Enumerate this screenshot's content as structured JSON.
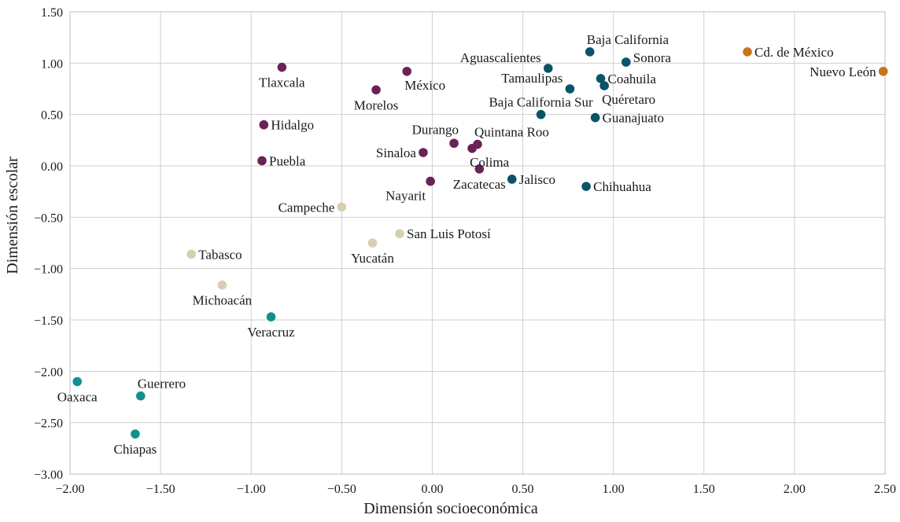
{
  "chart_data": {
    "type": "scatter",
    "xlabel": "Dimensión socioeconómica",
    "ylabel": "Dimensión escolar",
    "xlim": [
      -2.0,
      2.5
    ],
    "ylim": [
      -3.0,
      1.5
    ],
    "grid": true,
    "xticks": [
      {
        "v": -2.0,
        "label": "−2.00"
      },
      {
        "v": -1.5,
        "label": "−1.50"
      },
      {
        "v": -1.0,
        "label": "−1.00"
      },
      {
        "v": -0.5,
        "label": "−0.50"
      },
      {
        "v": 0.0,
        "label": "0.00"
      },
      {
        "v": 0.5,
        "label": "0.50"
      },
      {
        "v": 1.0,
        "label": "1.00"
      },
      {
        "v": 1.5,
        "label": "1.50"
      },
      {
        "v": 2.0,
        "label": "2.00"
      },
      {
        "v": 2.5,
        "label": "2.50"
      }
    ],
    "yticks": [
      {
        "v": 1.5,
        "label": "1.50"
      },
      {
        "v": 1.0,
        "label": "1.00"
      },
      {
        "v": 0.5,
        "label": "0.50"
      },
      {
        "v": 0.0,
        "label": "0.00"
      },
      {
        "v": -0.5,
        "label": "−0.50"
      },
      {
        "v": -1.0,
        "label": "−1.00"
      },
      {
        "v": -1.5,
        "label": "−1.50"
      },
      {
        "v": -2.0,
        "label": "−2.00"
      },
      {
        "v": -2.5,
        "label": "−2.50"
      },
      {
        "v": -3.0,
        "label": "−3.00"
      }
    ],
    "groups": [
      {
        "name": "high",
        "color": "#c8731e"
      },
      {
        "name": "upper",
        "color": "#0b5368"
      },
      {
        "name": "middle",
        "color": "#6b2357"
      },
      {
        "name": "lower",
        "color": "#d8cfb0"
      },
      {
        "name": "lowest",
        "color": "#12908f"
      }
    ],
    "points": [
      {
        "name": "Cd. de México",
        "x": 1.74,
        "y": 1.11,
        "group": "high",
        "pos": "right"
      },
      {
        "name": "Nuevo León",
        "x": 2.49,
        "y": 0.92,
        "group": "high",
        "pos": "left"
      },
      {
        "name": "Baja California",
        "x": 0.87,
        "y": 1.11,
        "group": "upper",
        "pos": "above-right"
      },
      {
        "name": "Sonora",
        "x": 1.07,
        "y": 1.01,
        "group": "upper",
        "pos": "right-up"
      },
      {
        "name": "Aguascalientes",
        "x": 0.64,
        "y": 0.95,
        "group": "upper",
        "pos": "left-up"
      },
      {
        "name": "Tamaulipas",
        "x": 0.76,
        "y": 0.75,
        "group": "upper",
        "pos": "left-up"
      },
      {
        "name": "Coahuila",
        "x": 0.93,
        "y": 0.85,
        "group": "upper",
        "pos": "right"
      },
      {
        "name": "Quéretaro",
        "x": 0.95,
        "y": 0.78,
        "group": "upper",
        "pos": "below-right"
      },
      {
        "name": "Baja California Sur",
        "x": 0.6,
        "y": 0.5,
        "group": "upper",
        "pos": "above"
      },
      {
        "name": "Guanajuato",
        "x": 0.9,
        "y": 0.47,
        "group": "upper",
        "pos": "right"
      },
      {
        "name": "Jalisco",
        "x": 0.44,
        "y": -0.13,
        "group": "upper",
        "pos": "right"
      },
      {
        "name": "Chihuahua",
        "x": 0.85,
        "y": -0.2,
        "group": "upper",
        "pos": "right"
      },
      {
        "name": "Tlaxcala",
        "x": -0.83,
        "y": 0.96,
        "group": "middle",
        "pos": "below"
      },
      {
        "name": "México",
        "x": -0.14,
        "y": 0.92,
        "group": "middle",
        "pos": "below-right"
      },
      {
        "name": "Morelos",
        "x": -0.31,
        "y": 0.74,
        "group": "middle",
        "pos": "below"
      },
      {
        "name": "Hidalgo",
        "x": -0.93,
        "y": 0.4,
        "group": "middle",
        "pos": "right"
      },
      {
        "name": "Puebla",
        "x": -0.94,
        "y": 0.05,
        "group": "middle",
        "pos": "right"
      },
      {
        "name": "Durango",
        "x": 0.12,
        "y": 0.22,
        "group": "middle",
        "pos": "above-left"
      },
      {
        "name": "Quintana Roo",
        "x": 0.25,
        "y": 0.21,
        "group": "middle",
        "pos": "above-right"
      },
      {
        "name": "Colima",
        "x": 0.22,
        "y": 0.17,
        "group": "middle",
        "pos": "below-right"
      },
      {
        "name": "Sinaloa",
        "x": -0.05,
        "y": 0.13,
        "group": "middle",
        "pos": "left"
      },
      {
        "name": "Zacatecas",
        "x": 0.26,
        "y": -0.03,
        "group": "middle",
        "pos": "below"
      },
      {
        "name": "Nayarit",
        "x": -0.01,
        "y": -0.15,
        "group": "middle",
        "pos": "below-left"
      },
      {
        "name": "Campeche",
        "x": -0.5,
        "y": -0.4,
        "group": "lower",
        "pos": "left"
      },
      {
        "name": "San Luis Potosí",
        "x": -0.18,
        "y": -0.66,
        "group": "lower",
        "pos": "right"
      },
      {
        "name": "Yucatán",
        "x": -0.33,
        "y": -0.75,
        "group": "lower",
        "pos": "below"
      },
      {
        "name": "Tabasco",
        "x": -1.33,
        "y": -0.86,
        "group": "lower",
        "pos": "right"
      },
      {
        "name": "Michoacán",
        "x": -1.16,
        "y": -1.16,
        "group": "lower",
        "pos": "below"
      },
      {
        "name": "Veracruz",
        "x": -0.89,
        "y": -1.47,
        "group": "lowest",
        "pos": "below"
      },
      {
        "name": "Oaxaca",
        "x": -1.96,
        "y": -2.1,
        "group": "lowest",
        "pos": "below"
      },
      {
        "name": "Guerrero",
        "x": -1.61,
        "y": -2.24,
        "group": "lowest",
        "pos": "above-right"
      },
      {
        "name": "Chiapas",
        "x": -1.64,
        "y": -2.61,
        "group": "lowest",
        "pos": "below"
      }
    ]
  }
}
